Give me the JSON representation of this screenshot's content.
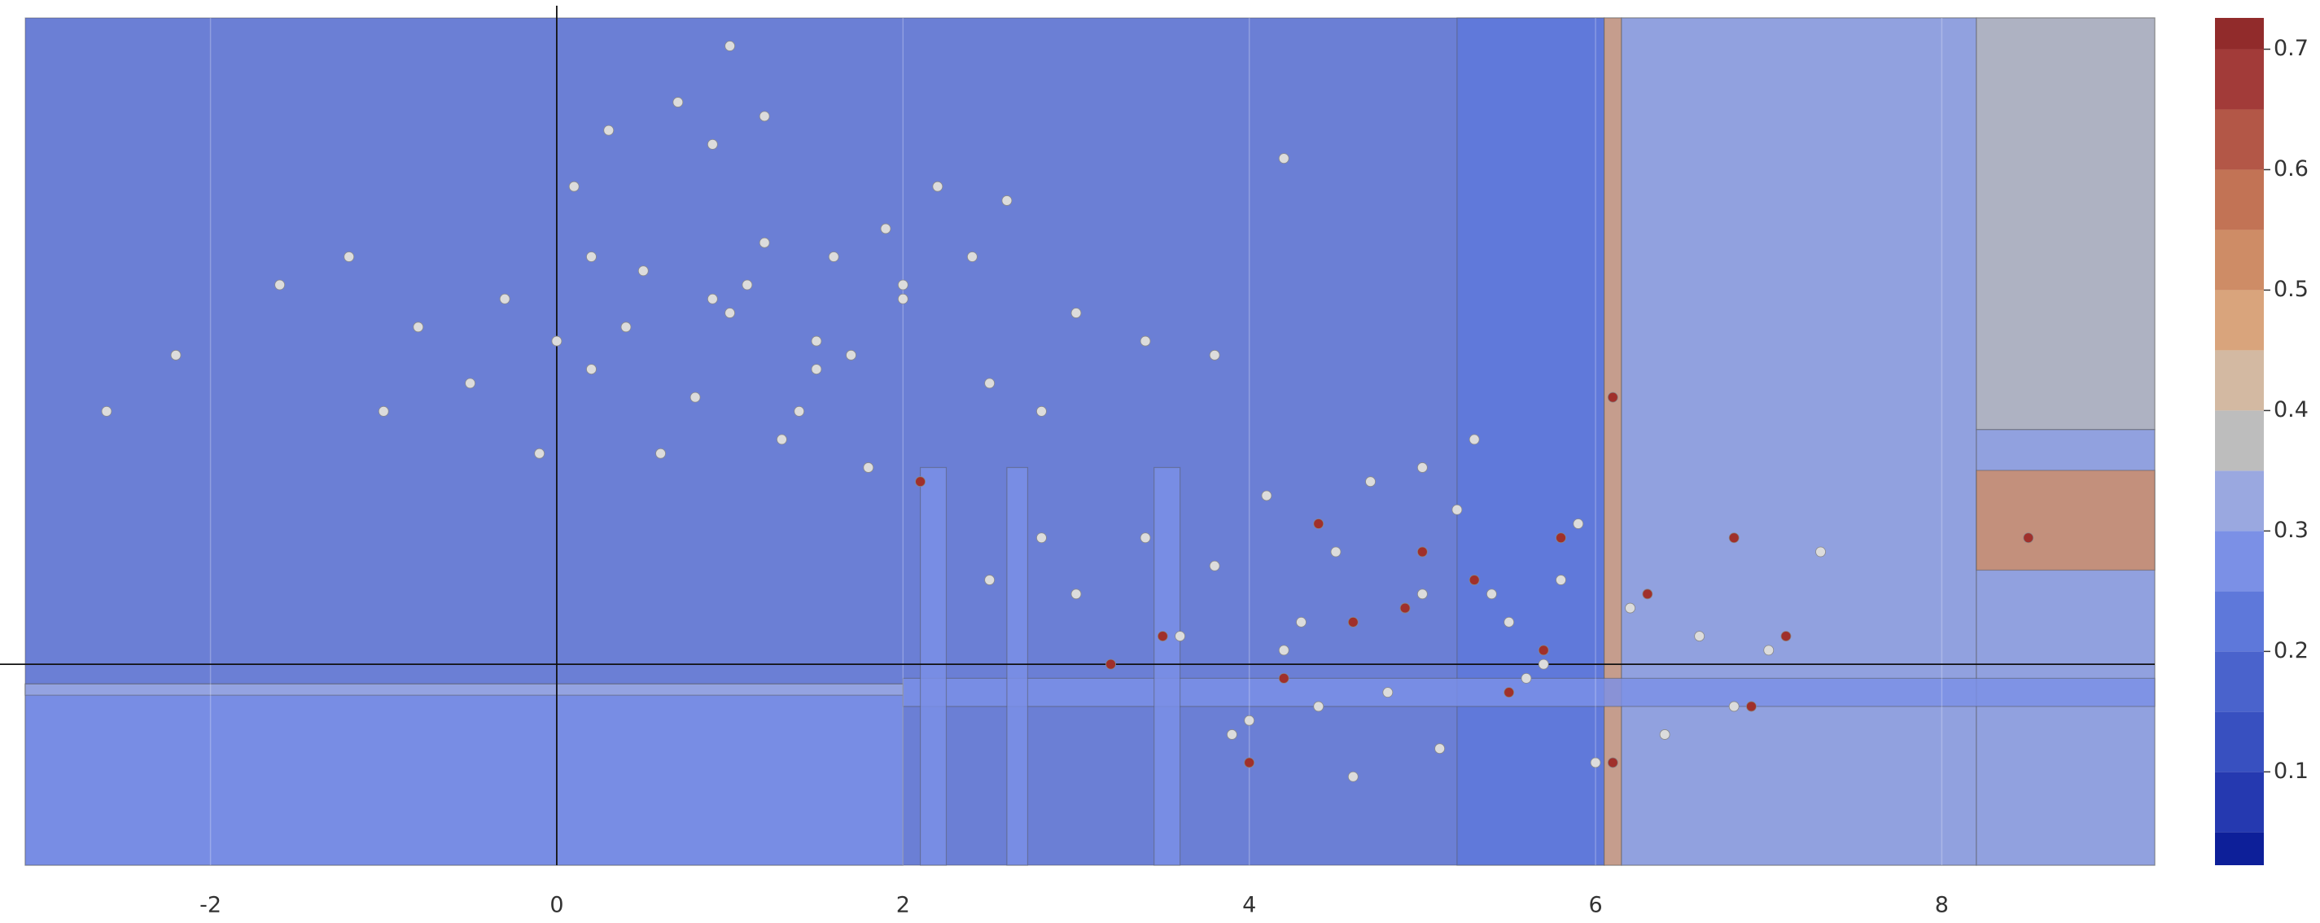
{
  "chart_data": {
    "type": "contour",
    "xlim": [
      -3.07,
      9.23
    ],
    "ylim": [
      -1.43,
      4.6
    ],
    "xticks": [
      -2,
      0,
      2,
      4,
      6,
      8
    ],
    "grid": true,
    "zlim": [
      0.0225,
      0.726
    ],
    "levels": [
      0.05,
      0.1,
      0.15,
      0.2,
      0.25,
      0.3,
      0.35,
      0.4,
      0.45,
      0.5,
      0.55,
      0.6,
      0.65,
      0.7
    ],
    "colors": [
      "#0d1f99",
      "#2539b0",
      "#3850c0",
      "#4a63cc",
      "#5e78da",
      "#7b90e6",
      "#9aa8e0",
      "#bdbdbd",
      "#d3b9a2",
      "#d9a47c",
      "#ce8c66",
      "#c27355",
      "#b35747",
      "#a23b39",
      "#912b2b"
    ],
    "colorbar_ticks": [
      0.1,
      0.2,
      0.3,
      0.4,
      0.5,
      0.6,
      0.7
    ],
    "regions": [
      {
        "x": [
          -3.07,
          9.23
        ],
        "y": [
          -1.43,
          4.6
        ],
        "value": 0.18
      },
      {
        "x": [
          5.2,
          6.05
        ],
        "y": [
          -1.43,
          4.6
        ],
        "value": 0.22
      },
      {
        "x": [
          6.05,
          6.15
        ],
        "y": [
          -1.43,
          4.6
        ],
        "value": 0.47
      },
      {
        "x": [
          6.15,
          8.2
        ],
        "y": [
          -1.43,
          4.6
        ],
        "value": 0.32
      },
      {
        "x": [
          8.2,
          9.23
        ],
        "y": [
          1.67,
          4.6
        ],
        "value": 0.37
      },
      {
        "x": [
          8.2,
          9.23
        ],
        "y": [
          -1.43,
          1.67
        ],
        "value": 0.32
      },
      {
        "x": [
          8.2,
          9.23
        ],
        "y": [
          0.67,
          1.38
        ],
        "value": 0.52
      },
      {
        "x": [
          -3.07,
          2.0
        ],
        "y": [
          -1.43,
          -0.14
        ],
        "value": 0.27
      },
      {
        "x": [
          -3.07,
          2.0
        ],
        "y": [
          -0.22,
          -0.14
        ],
        "value": 0.32
      },
      {
        "x": [
          2.0,
          9.23
        ],
        "y": [
          -0.3,
          -0.1
        ],
        "value": 0.27
      },
      {
        "x": [
          2.1,
          2.25
        ],
        "y": [
          -1.43,
          1.4
        ],
        "value": 0.27
      },
      {
        "x": [
          2.6,
          2.72
        ],
        "y": [
          -1.43,
          1.4
        ],
        "value": 0.27
      },
      {
        "x": [
          3.45,
          3.6
        ],
        "y": [
          -1.43,
          1.4
        ],
        "value": 0.27
      }
    ],
    "series": [
      {
        "color": "#dcdcdc",
        "x": [
          1.0,
          0.5,
          1.5,
          0.2,
          1.2,
          0.8,
          -0.3,
          2.0,
          1.7,
          0.1,
          -0.8,
          2.5,
          0.9,
          1.3,
          0.4,
          -1.2,
          3.0,
          1.9,
          0.6,
          1.1,
          -0.5,
          2.2,
          0.0,
          1.6,
          2.8,
          -1.6,
          0.7,
          1.4,
          -2.2,
          3.4,
          0.3,
          1.8,
          2.4,
          -0.1,
          1.0,
          -1.0,
          2.6,
          0.9,
          1.5,
          -2.6,
          4.2,
          3.8,
          0.2,
          1.2,
          2.0,
          5.0,
          4.5,
          5.5,
          4.2,
          5.8,
          4.8,
          3.8,
          6.2,
          5.2,
          4.0,
          6.6,
          3.4,
          5.6,
          4.7,
          5.1,
          3.0,
          7.0,
          4.4,
          5.9,
          2.8,
          6.4,
          4.9,
          5.3,
          3.6,
          6.8,
          4.1,
          5.7,
          2.5,
          7.3,
          4.6,
          5.4,
          6.0,
          3.9,
          5.0,
          4.3
        ],
        "y": [
          2.5,
          2.8,
          2.3,
          2.1,
          3.0,
          1.9,
          2.6,
          2.7,
          2.2,
          3.4,
          2.4,
          2.0,
          3.7,
          1.6,
          2.4,
          2.9,
          2.5,
          3.1,
          1.5,
          2.7,
          2.0,
          3.4,
          2.3,
          2.9,
          1.8,
          2.7,
          4.0,
          1.8,
          2.2,
          2.3,
          3.8,
          1.4,
          2.9,
          1.5,
          4.4,
          1.8,
          3.3,
          2.6,
          2.1,
          1.8,
          3.6,
          2.2,
          2.9,
          3.9,
          2.6,
          0.5,
          0.8,
          0.3,
          0.1,
          0.6,
          -0.2,
          0.7,
          0.4,
          1.1,
          -0.4,
          0.2,
          0.9,
          -0.1,
          1.3,
          -0.6,
          0.5,
          0.1,
          -0.3,
          1.0,
          0.9,
          -0.5,
          0.4,
          1.6,
          0.2,
          -0.3,
          1.2,
          0.0,
          0.6,
          0.8,
          -0.8,
          0.5,
          -0.7,
          -0.5,
          1.4,
          0.3
        ]
      },
      {
        "color": "#a0302b",
        "x": [
          4.6,
          5.3,
          6.1,
          4.2,
          5.8,
          6.8,
          3.5,
          4.9,
          5.5,
          2.1,
          6.3,
          4.0,
          7.1,
          5.0,
          3.2,
          6.1,
          8.5,
          4.4,
          5.7,
          6.9
        ],
        "y": [
          0.3,
          0.6,
          1.9,
          -0.1,
          0.9,
          0.9,
          0.2,
          0.4,
          -0.2,
          1.3,
          0.5,
          -0.7,
          0.2,
          0.8,
          0.0,
          -0.7,
          0.9,
          1.0,
          0.1,
          -0.3
        ]
      }
    ]
  }
}
